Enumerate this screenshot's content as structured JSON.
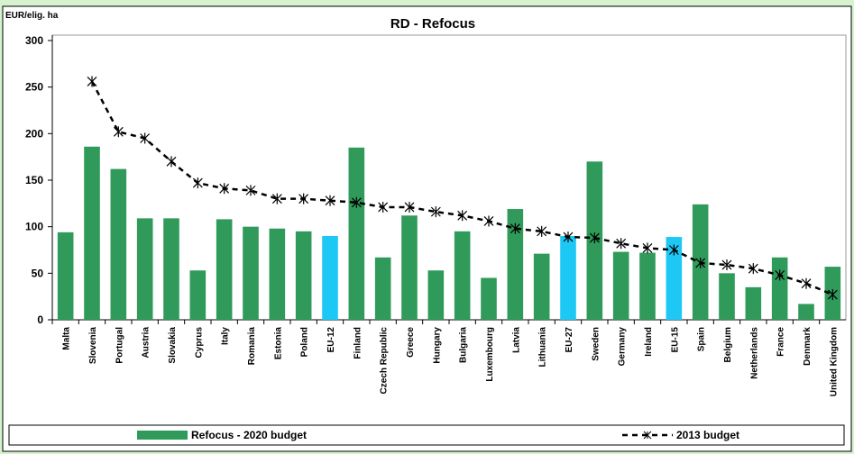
{
  "chart_data": {
    "type": "bar",
    "title": "RD - Refocus",
    "y_label": "EUR/elig. ha",
    "categories": [
      "Malta",
      "Slovenia",
      "Portugal",
      "Austria",
      "Slovakia",
      "Cyprus",
      "Italy",
      "Romania",
      "Estonia",
      "Poland",
      "EU-12",
      "Finland",
      "Czech Republic",
      "Greece",
      "Hungary",
      "Bulgaria",
      "Luxembourg",
      "Latvia",
      "Lithuania",
      "EU-27",
      "Sweden",
      "Germany",
      "Ireland",
      "EU-15",
      "Spain",
      "Belgium",
      "Netherlands",
      "France",
      "Denmark",
      "United Kingdom"
    ],
    "series": [
      {
        "name": "Refocus - 2020 budget",
        "type": "bar",
        "color": "#2f9a5a",
        "colors": [
          "#2f9a5a",
          "#2f9a5a",
          "#2f9a5a",
          "#2f9a5a",
          "#2f9a5a",
          "#2f9a5a",
          "#2f9a5a",
          "#2f9a5a",
          "#2f9a5a",
          "#2f9a5a",
          "#1ec8f5",
          "#2f9a5a",
          "#2f9a5a",
          "#2f9a5a",
          "#2f9a5a",
          "#2f9a5a",
          "#2f9a5a",
          "#2f9a5a",
          "#2f9a5a",
          "#1ec8f5",
          "#2f9a5a",
          "#2f9a5a",
          "#2f9a5a",
          "#1ec8f5",
          "#2f9a5a",
          "#2f9a5a",
          "#2f9a5a",
          "#2f9a5a",
          "#2f9a5a",
          "#2f9a5a"
        ],
        "values": [
          94,
          186,
          162,
          109,
          109,
          53,
          108,
          100,
          98,
          95,
          90,
          185,
          67,
          112,
          53,
          95,
          45,
          119,
          71,
          90,
          170,
          73,
          72,
          89,
          124,
          50,
          35,
          67,
          17,
          57
        ]
      },
      {
        "name": "2013 budget",
        "type": "line",
        "color": "#000000",
        "values": [
          null,
          256,
          202,
          195,
          170,
          147,
          141,
          139,
          130,
          130,
          128,
          126,
          121,
          121,
          116,
          112,
          106,
          98,
          95,
          89,
          88,
          82,
          77,
          75,
          61,
          59,
          55,
          48,
          39,
          27
        ]
      }
    ],
    "ylim": [
      0,
      300
    ],
    "yticks": [
      0,
      50,
      100,
      150,
      200,
      250,
      300
    ],
    "grid": false
  }
}
